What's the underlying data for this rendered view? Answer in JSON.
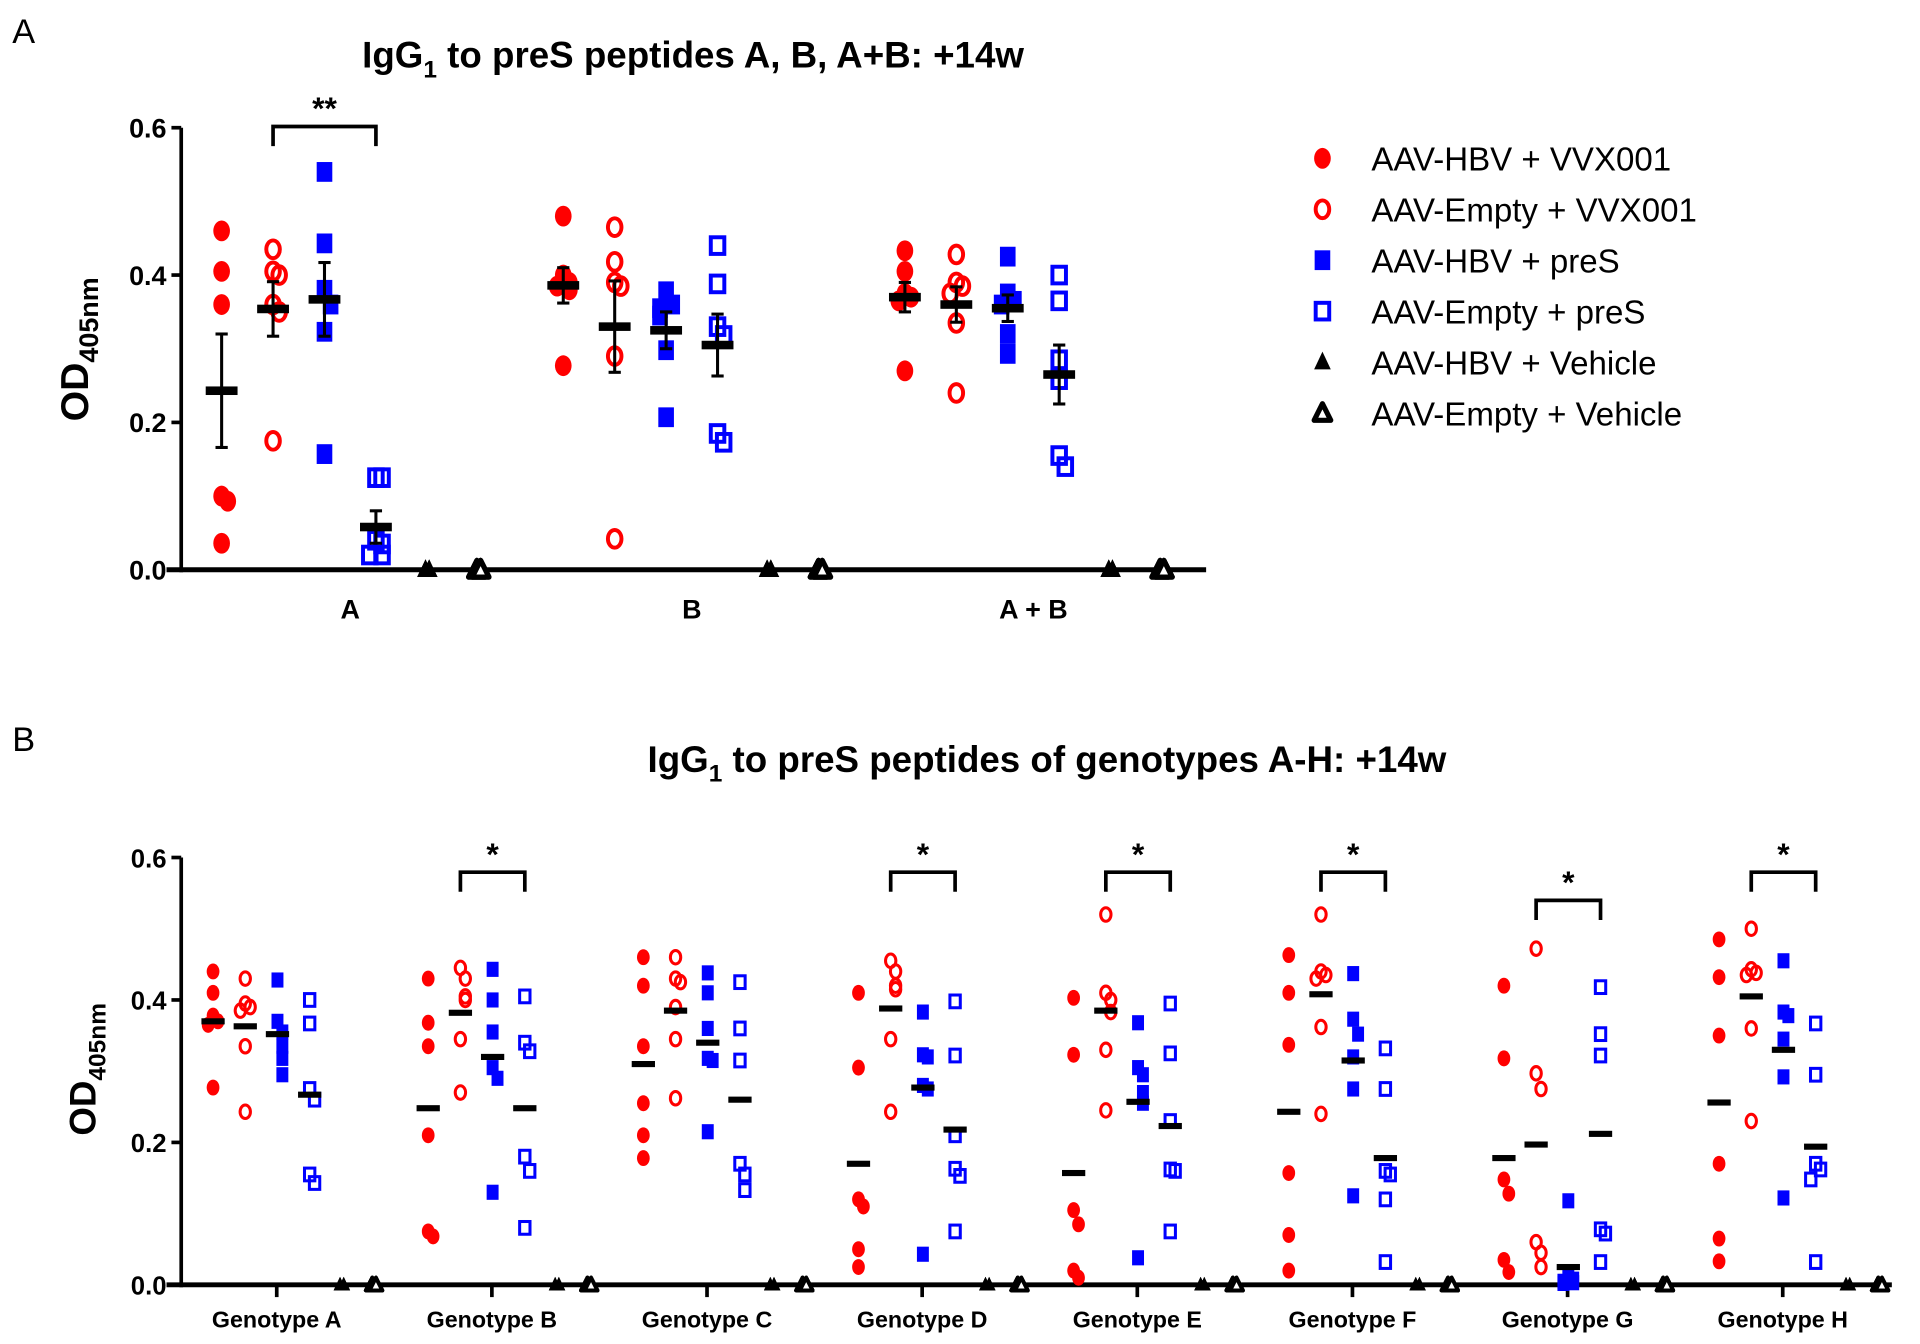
{
  "colors": {
    "red": "#ff0000",
    "blue": "#0000ff",
    "black": "#000000"
  },
  "legend": [
    {
      "label": "AAV-HBV + VVX001",
      "marker": "filled-circle",
      "color": "#ff0000"
    },
    {
      "label": "AAV-Empty + VVX001",
      "marker": "open-circle",
      "color": "#ff0000"
    },
    {
      "label": "AAV-HBV + preS",
      "marker": "filled-square",
      "color": "#0000ff"
    },
    {
      "label": "AAV-Empty + preS",
      "marker": "open-square",
      "color": "#0000ff"
    },
    {
      "label": "AAV-HBV + Vehicle",
      "marker": "filled-triangle",
      "color": "#000000"
    },
    {
      "label": "AAV-Empty + Vehicle",
      "marker": "open-triangle",
      "color": "#000000"
    }
  ],
  "chart_data": [
    {
      "panel_label": "A",
      "type": "scatter",
      "title_prefix": "IgG",
      "title_sub": "1",
      "title_rest": " to preS peptides A, B, A+B: +14w",
      "ylabel_main": "OD",
      "ylabel_sub": "405nm",
      "ylim": [
        0,
        0.6
      ],
      "yticks": [
        "0.0",
        "0.2",
        "0.4",
        "0.6"
      ],
      "categories": [
        "A",
        "B",
        "A + B"
      ],
      "legend_position": "right",
      "series_values": [
        [
          [
            0.46,
            0.405,
            0.36,
            0.1,
            0.093,
            0.036
          ],
          [
            0.435,
            0.405,
            0.4,
            0.36,
            0.35,
            0.175
          ],
          [
            0.54,
            0.443,
            0.38,
            0.36,
            0.323,
            0.157
          ],
          [
            0.125,
            0.125,
            0.04,
            0.035,
            0.02,
            0.02
          ],
          [
            0,
            0,
            0,
            0,
            0,
            0
          ],
          [
            0,
            0,
            0,
            0,
            0,
            0
          ]
        ],
        [
          [
            0.48,
            0.4,
            0.39,
            0.385,
            0.38,
            0.277
          ],
          [
            0.465,
            0.418,
            0.39,
            0.385,
            0.29,
            0.042
          ],
          [
            0.378,
            0.36,
            0.355,
            0.345,
            0.298,
            0.207
          ],
          [
            0.44,
            0.388,
            0.33,
            0.318,
            0.185,
            0.173
          ],
          [
            0,
            0,
            0,
            0,
            0,
            0
          ],
          [
            0,
            0,
            0,
            0,
            0,
            0
          ]
        ],
        [
          [
            0.433,
            0.405,
            0.375,
            0.37,
            0.365,
            0.27
          ],
          [
            0.428,
            0.39,
            0.385,
            0.375,
            0.335,
            0.24
          ],
          [
            0.425,
            0.375,
            0.365,
            0.36,
            0.32,
            0.293
          ],
          [
            0.4,
            0.365,
            0.285,
            0.258,
            0.155,
            0.14
          ],
          [
            0,
            0,
            0,
            0,
            0,
            0
          ],
          [
            0,
            0,
            0,
            0,
            0,
            0
          ]
        ]
      ],
      "means": [
        [
          0.243,
          0.354,
          0.367,
          0.058,
          0,
          0
        ],
        [
          0.386,
          0.33,
          0.325,
          0.305,
          0,
          0
        ],
        [
          0.37,
          0.36,
          0.355,
          0.265,
          0,
          0
        ]
      ],
      "sem": [
        [
          0.077,
          0.037,
          0.05,
          0.022,
          0,
          0
        ],
        [
          0.024,
          0.062,
          0.025,
          0.042,
          0,
          0
        ],
        [
          0.02,
          0.024,
          0.018,
          0.04,
          0,
          0
        ]
      ],
      "significance": [
        {
          "category": 0,
          "from": 1,
          "to": 3,
          "label": "**"
        }
      ]
    },
    {
      "panel_label": "B",
      "type": "scatter",
      "title_prefix": "IgG",
      "title_sub": "1",
      "title_rest": " to preS peptides of genotypes A-H: +14w",
      "ylabel_main": "OD",
      "ylabel_sub": "405nm",
      "ylim": [
        0,
        0.6
      ],
      "yticks": [
        "0.0",
        "0.2",
        "0.4",
        "0.6"
      ],
      "categories": [
        "Genotype A",
        "Genotype B",
        "Genotype C",
        "Genotype D",
        "Genotype E",
        "Genotype F",
        "Genotype G",
        "Genotype H"
      ],
      "series_values": [
        [
          [
            0.44,
            0.41,
            0.378,
            0.37,
            0.365,
            0.277
          ],
          [
            0.43,
            0.395,
            0.39,
            0.385,
            0.335,
            0.243
          ],
          [
            0.428,
            0.37,
            0.355,
            0.335,
            0.318,
            0.295
          ],
          [
            0.4,
            0.367,
            0.275,
            0.26,
            0.155,
            0.143
          ],
          [
            0,
            0,
            0,
            0,
            0,
            0
          ],
          [
            0,
            0,
            0,
            0,
            0,
            0
          ]
        ],
        [
          [
            0.43,
            0.368,
            0.335,
            0.21,
            0.075,
            0.068
          ],
          [
            0.445,
            0.43,
            0.405,
            0.4,
            0.345,
            0.27
          ],
          [
            0.443,
            0.4,
            0.355,
            0.305,
            0.29,
            0.13
          ],
          [
            0.405,
            0.34,
            0.328,
            0.18,
            0.16,
            0.08
          ],
          [
            0,
            0,
            0,
            0,
            0,
            0
          ],
          [
            0,
            0,
            0,
            0,
            0,
            0
          ]
        ],
        [
          [
            0.46,
            0.42,
            0.335,
            0.255,
            0.21,
            0.178
          ],
          [
            0.46,
            0.43,
            0.425,
            0.39,
            0.345,
            0.262
          ],
          [
            0.438,
            0.41,
            0.36,
            0.318,
            0.315,
            0.215
          ],
          [
            0.425,
            0.36,
            0.315,
            0.17,
            0.155,
            0.133
          ],
          [
            0,
            0,
            0,
            0,
            0,
            0
          ],
          [
            0,
            0,
            0,
            0,
            0,
            0
          ]
        ],
        [
          [
            0.41,
            0.305,
            0.12,
            0.11,
            0.05,
            0.025
          ],
          [
            0.455,
            0.44,
            0.42,
            0.415,
            0.345,
            0.243
          ],
          [
            0.383,
            0.323,
            0.32,
            0.28,
            0.275,
            0.043
          ],
          [
            0.398,
            0.322,
            0.21,
            0.163,
            0.153,
            0.075
          ],
          [
            0,
            0,
            0,
            0,
            0,
            0
          ],
          [
            0,
            0,
            0,
            0,
            0,
            0
          ]
        ],
        [
          [
            0.403,
            0.323,
            0.105,
            0.085,
            0.02,
            0.01
          ],
          [
            0.52,
            0.41,
            0.4,
            0.383,
            0.33,
            0.245
          ],
          [
            0.368,
            0.305,
            0.295,
            0.27,
            0.255,
            0.038
          ],
          [
            0.395,
            0.325,
            0.23,
            0.162,
            0.16,
            0.075
          ],
          [
            0,
            0,
            0,
            0,
            0,
            0
          ],
          [
            0,
            0,
            0,
            0,
            0,
            0
          ]
        ],
        [
          [
            0.463,
            0.41,
            0.337,
            0.157,
            0.07,
            0.02
          ],
          [
            0.52,
            0.44,
            0.435,
            0.43,
            0.362,
            0.24
          ],
          [
            0.437,
            0.373,
            0.352,
            0.32,
            0.275,
            0.125
          ],
          [
            0.332,
            0.275,
            0.16,
            0.155,
            0.12,
            0.032
          ],
          [
            0,
            0,
            0,
            0,
            0,
            0
          ],
          [
            0,
            0,
            0,
            0,
            0,
            0
          ]
        ],
        [
          [
            0.42,
            0.318,
            0.148,
            0.128,
            0.035,
            0.018
          ],
          [
            0.472,
            0.297,
            0.275,
            0.06,
            0.045,
            0.025
          ],
          [
            0.118,
            0.012,
            0.008,
            0.005,
            0.003,
            0.002
          ],
          [
            0.418,
            0.352,
            0.322,
            0.078,
            0.072,
            0.032
          ],
          [
            0,
            0,
            0,
            0,
            0,
            0
          ],
          [
            0,
            0,
            0,
            0,
            0,
            0
          ]
        ],
        [
          [
            0.485,
            0.432,
            0.35,
            0.17,
            0.065,
            0.033
          ],
          [
            0.5,
            0.443,
            0.438,
            0.435,
            0.36,
            0.23
          ],
          [
            0.455,
            0.383,
            0.378,
            0.345,
            0.292,
            0.122
          ],
          [
            0.367,
            0.295,
            0.17,
            0.162,
            0.148,
            0.032
          ],
          [
            0,
            0,
            0,
            0,
            0,
            0
          ],
          [
            0,
            0,
            0,
            0,
            0,
            0
          ]
        ]
      ],
      "means": [
        [
          0.37,
          0.363,
          0.352,
          0.267,
          0,
          0
        ],
        [
          0.248,
          0.382,
          0.32,
          0.248,
          0,
          0
        ],
        [
          0.31,
          0.385,
          0.34,
          0.26,
          0,
          0
        ],
        [
          0.17,
          0.388,
          0.277,
          0.218,
          0,
          0
        ],
        [
          0.157,
          0.385,
          0.257,
          0.223,
          0,
          0
        ],
        [
          0.243,
          0.408,
          0.315,
          0.178,
          0,
          0
        ],
        [
          0.178,
          0.197,
          0.025,
          0.212,
          0,
          0
        ],
        [
          0.256,
          0.405,
          0.33,
          0.194,
          0,
          0
        ]
      ],
      "significance": [
        {
          "category": 1,
          "from": 1,
          "to": 3,
          "label": "*"
        },
        {
          "category": 3,
          "from": 1,
          "to": 3,
          "label": "*"
        },
        {
          "category": 4,
          "from": 1,
          "to": 3,
          "label": "*"
        },
        {
          "category": 5,
          "from": 1,
          "to": 3,
          "label": "*"
        },
        {
          "category": 6,
          "from": 1,
          "to": 3,
          "label": "*"
        },
        {
          "category": 7,
          "from": 1,
          "to": 3,
          "label": "*"
        }
      ]
    }
  ]
}
